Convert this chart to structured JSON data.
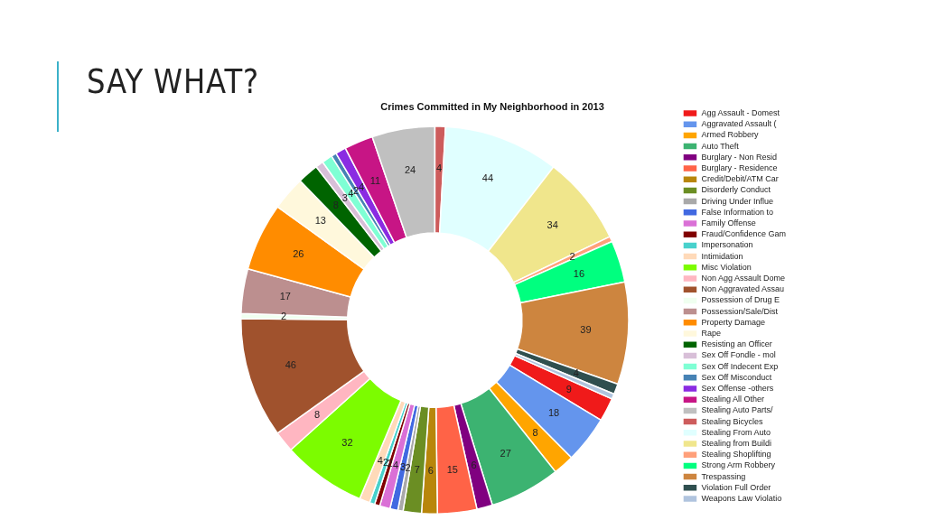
{
  "chart_data": {
    "type": "donut",
    "title": "Crimes Committed in My Neighborhood in 2013",
    "annotations": [
      "SAY WHAT?"
    ],
    "categories": [
      "Agg Assault - Domest",
      "Aggravated Assault (",
      "Armed Robbery",
      "Auto Theft",
      "Burglary - Non Resid",
      "Burglary - Residence",
      "Credit/Debit/ATM Car",
      "Disorderly Conduct",
      "Driving Under Influe",
      "False Information to",
      "Family Offense",
      "Fraud/Confidence Gam",
      "Impersonation",
      "Intimidation",
      "Misc Violation",
      "Non Agg Assault Dome",
      "Non Aggravated Assau",
      "Possession of Drug E",
      "Possession/Sale/Dist",
      "Property Damage",
      "Rape",
      "Resisting an Officer",
      "Sex Off Fondle - mol",
      "Sex Off Indecent Exp",
      "Sex Off Misconduct",
      "Sex Offense -others",
      "Stealing All Other",
      "Stealing Auto Parts/",
      "Stealing Bicycles",
      "Stealing From Auto",
      "Stealing from Buildi",
      "Stealing Shoplifting",
      "Strong Arm Robbery",
      "Trespassing",
      "Violation Full Order",
      "Weapons Law Violatio"
    ],
    "values": [
      9,
      18,
      8,
      27,
      6,
      15,
      6,
      7,
      2,
      3,
      4,
      2,
      2,
      4,
      32,
      8,
      46,
      2,
      17,
      26,
      13,
      8,
      3,
      4,
      2,
      4,
      11,
      24,
      4,
      44,
      34,
      2,
      16,
      39,
      4,
      2
    ],
    "value_labels": [
      "9",
      "18",
      "8",
      "27",
      "6",
      "15",
      "6",
      "7",
      "2",
      "3",
      "4",
      "2",
      "2",
      "4",
      "32",
      "8",
      "46",
      "2",
      "17",
      "26",
      "13",
      "8",
      "3",
      "4",
      "2",
      "4",
      "11",
      "24",
      "4",
      "44",
      "34",
      "2",
      "16",
      "39",
      "4",
      null
    ],
    "colors": [
      "#f01a1a",
      "#6495ed",
      "#ffa500",
      "#3cb371",
      "#800080",
      "#ff6347",
      "#b8860b",
      "#6b8e23",
      "#a9a9a9",
      "#4169e1",
      "#da70d6",
      "#800000",
      "#48d1cc",
      "#ffdab9",
      "#7cfc00",
      "#ffb6c1",
      "#a0522d",
      "#f0fff0",
      "#bc8f8f",
      "#ff8c00",
      "#fff8dc",
      "#006400",
      "#d8bfd8",
      "#7fffd4",
      "#4682b4",
      "#8a2be2",
      "#c71585",
      "#c0c0c0",
      "#cd5c5c",
      "#e0ffff",
      "#f0e68c",
      "#ffa07a",
      "#00ff7f",
      "#cd853f",
      "#2f4f4f",
      "#b0c4de"
    ],
    "legend": "right"
  }
}
